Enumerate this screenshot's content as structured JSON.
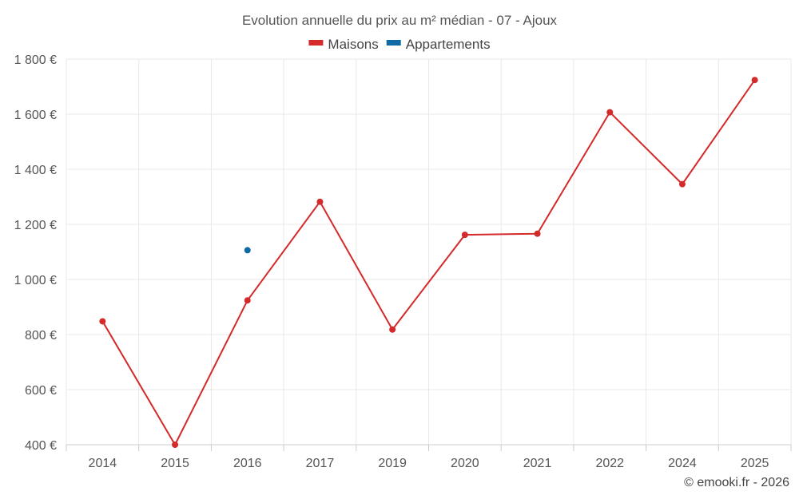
{
  "chart_data": {
    "type": "line",
    "title": "Evolution annuelle du prix au m² médian - 07 - Ajoux",
    "categories": [
      "2014",
      "2015",
      "2016",
      "2017",
      "2019",
      "2020",
      "2021",
      "2022",
      "2024",
      "2025"
    ],
    "ylim": [
      400,
      1800
    ],
    "yticks": [
      400,
      600,
      800,
      1000,
      1200,
      1400,
      1600,
      1800
    ],
    "ytick_labels": [
      "400 €",
      "600 €",
      "800 €",
      "1 000 €",
      "1 200 €",
      "1 400 €",
      "1 600 €",
      "1 800 €"
    ],
    "xlabel": "",
    "ylabel": "",
    "grid": true,
    "legend_position": "top-center",
    "series": [
      {
        "name": "Maisons",
        "color": "#d42a2a",
        "values": [
          848,
          400,
          924,
          1282,
          818,
          1162,
          1166,
          1607,
          1346,
          1724
        ]
      },
      {
        "name": "Appartements",
        "color": "#0f6aa6",
        "values": [
          null,
          null,
          1106,
          null,
          null,
          null,
          null,
          null,
          null,
          null
        ]
      }
    ]
  },
  "footer": {
    "credit": "© emooki.fr - 2026"
  }
}
